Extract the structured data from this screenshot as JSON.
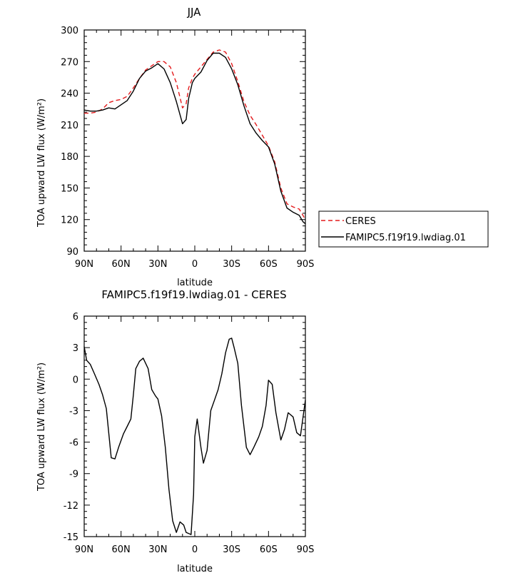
{
  "chart_data": [
    {
      "type": "line",
      "title": "JJA",
      "xlabel": "latitude",
      "ylabel": "TOA upward LW flux (W/m²)",
      "ylim": [
        90,
        300
      ],
      "xlim": [
        -90,
        90
      ],
      "yticks": [
        90,
        120,
        150,
        180,
        210,
        240,
        270,
        300
      ],
      "xticks": [
        -90,
        -60,
        -30,
        0,
        30,
        60,
        90
      ],
      "xtick_labels": [
        "90N",
        "60N",
        "30N",
        "0",
        "30S",
        "60S",
        "90S"
      ],
      "legend": {
        "position": "right"
      },
      "series": [
        {
          "name": "CERES",
          "color": "#e41a1c",
          "style": "dashed",
          "x": [
            -90,
            -85,
            -80,
            -75,
            -70,
            -65,
            -60,
            -55,
            -50,
            -45,
            -40,
            -35,
            -30,
            -25,
            -20,
            -15,
            -10,
            -7,
            -5,
            -2,
            0,
            5,
            10,
            15,
            20,
            25,
            30,
            35,
            40,
            45,
            50,
            55,
            60,
            65,
            70,
            75,
            80,
            85,
            88,
            90
          ],
          "y": [
            221,
            221,
            222,
            225,
            231,
            233,
            234,
            237,
            245,
            254,
            262,
            266,
            270,
            270,
            265,
            250,
            226,
            230,
            245,
            254,
            258,
            265,
            272,
            279,
            281,
            279,
            268,
            251,
            232,
            219,
            210,
            200,
            190,
            175,
            150,
            135,
            132,
            130,
            124,
            120
          ]
        },
        {
          "name": "FAMIPC5.f19f19.lwdiag.01",
          "color": "#000000",
          "style": "solid",
          "x": [
            -90,
            -85,
            -80,
            -75,
            -70,
            -65,
            -60,
            -55,
            -50,
            -45,
            -40,
            -35,
            -30,
            -25,
            -20,
            -15,
            -10,
            -7,
            -5,
            -2,
            0,
            5,
            10,
            15,
            20,
            25,
            30,
            35,
            40,
            45,
            50,
            55,
            60,
            65,
            70,
            75,
            80,
            85,
            88,
            90
          ],
          "y": [
            224,
            223,
            223,
            224,
            226,
            225,
            229,
            233,
            242,
            254,
            261,
            264,
            268,
            263,
            250,
            232,
            211,
            215,
            235,
            250,
            254,
            260,
            271,
            278,
            278,
            274,
            263,
            248,
            228,
            211,
            202,
            195,
            189,
            173,
            147,
            131,
            127,
            124,
            118,
            116
          ]
        }
      ]
    },
    {
      "type": "line",
      "title": "FAMIPC5.f19f19.lwdiag.01 - CERES",
      "xlabel": "latitude",
      "ylabel": "TOA upward LW flux (W/m²)",
      "ylim": [
        -15,
        6
      ],
      "xlim": [
        -90,
        90
      ],
      "yticks": [
        -15,
        -12,
        -9,
        -6,
        -3,
        0,
        3,
        6
      ],
      "xticks": [
        -90,
        -60,
        -30,
        0,
        30,
        60,
        90
      ],
      "xtick_labels": [
        "90N",
        "60N",
        "30N",
        "0",
        "30S",
        "60S",
        "90S"
      ],
      "series": [
        {
          "color": "#000000",
          "style": "solid",
          "x": [
            -90,
            -88,
            -85,
            -82,
            -78,
            -75,
            -72,
            -68,
            -65,
            -62,
            -58,
            -55,
            -52,
            -50,
            -48,
            -45,
            -42,
            -38,
            -35,
            -32,
            -30,
            -27,
            -24,
            -21,
            -18,
            -15,
            -12,
            -9,
            -7,
            -5,
            -3,
            -1,
            0,
            2,
            5,
            7,
            10,
            13,
            16,
            19,
            22,
            25,
            28,
            30,
            32,
            35,
            38,
            42,
            45,
            48,
            52,
            55,
            58,
            60,
            63,
            66,
            70,
            73,
            76,
            80,
            83,
            86,
            90
          ],
          "y": [
            3.1,
            1.8,
            1.4,
            0.6,
            -0.5,
            -1.5,
            -2.8,
            -7.5,
            -7.6,
            -6.5,
            -5.2,
            -4.5,
            -3.8,
            -1.5,
            1.0,
            1.7,
            2.0,
            1.0,
            -1.0,
            -1.6,
            -1.9,
            -3.5,
            -6.5,
            -10.5,
            -13.5,
            -14.6,
            -13.6,
            -13.9,
            -14.6,
            -14.7,
            -14.8,
            -11.0,
            -5.5,
            -3.8,
            -6.5,
            -8.0,
            -6.8,
            -3.0,
            -2.0,
            -1.0,
            0.5,
            2.5,
            3.8,
            3.9,
            3.0,
            1.5,
            -2.5,
            -6.5,
            -7.2,
            -6.5,
            -5.5,
            -4.5,
            -2.5,
            -0.1,
            -0.5,
            -3.2,
            -5.8,
            -4.8,
            -3.2,
            -3.6,
            -5.1,
            -5.4,
            -2.0
          ]
        }
      ]
    }
  ]
}
